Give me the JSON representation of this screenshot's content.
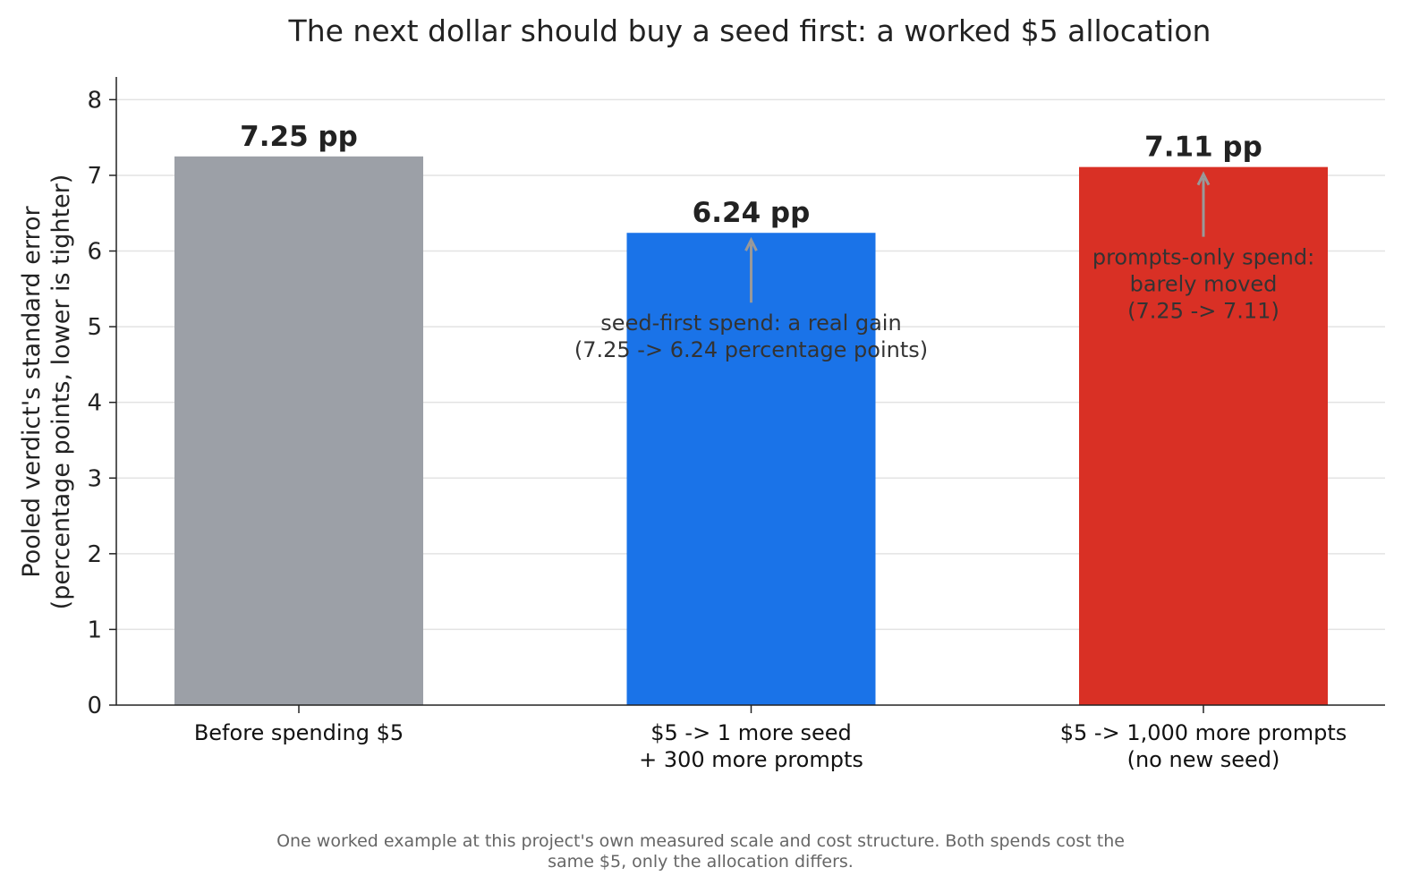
{
  "chart_data": {
    "type": "bar",
    "title": "The next dollar should buy a seed first: a worked $5 allocation",
    "ylabel": [
      "Pooled verdict's standard error",
      "(percentage points, lower is tighter)"
    ],
    "xlabel": "",
    "ylim": [
      0,
      8.3
    ],
    "yticks": [
      0,
      1,
      2,
      3,
      4,
      5,
      6,
      7,
      8
    ],
    "grid": "horizontal",
    "categories": [
      [
        "Before spending $5"
      ],
      [
        "$5 -> 1 more seed",
        "+ 300 more prompts"
      ],
      [
        "$5 -> 1,000 more prompts",
        "(no new seed)"
      ]
    ],
    "values": [
      7.25,
      6.24,
      7.11
    ],
    "value_labels": [
      "7.25 pp",
      "6.24 pp",
      "7.11 pp"
    ],
    "colors": [
      "#9ca0a7",
      "#1a73e8",
      "#d93025"
    ],
    "annotations": [
      {
        "bar_index": 1,
        "lines": [
          "seed-first spend: a real gain",
          "(7.25 -> 6.24 percentage points)"
        ]
      },
      {
        "bar_index": 2,
        "lines": [
          "prompts-only spend:",
          "barely moved",
          "(7.25 -> 7.11)"
        ]
      }
    ],
    "footnote": [
      "One worked example at this project's own measured scale and cost structure. Both spends cost the",
      "same $5, only the allocation differs."
    ]
  }
}
